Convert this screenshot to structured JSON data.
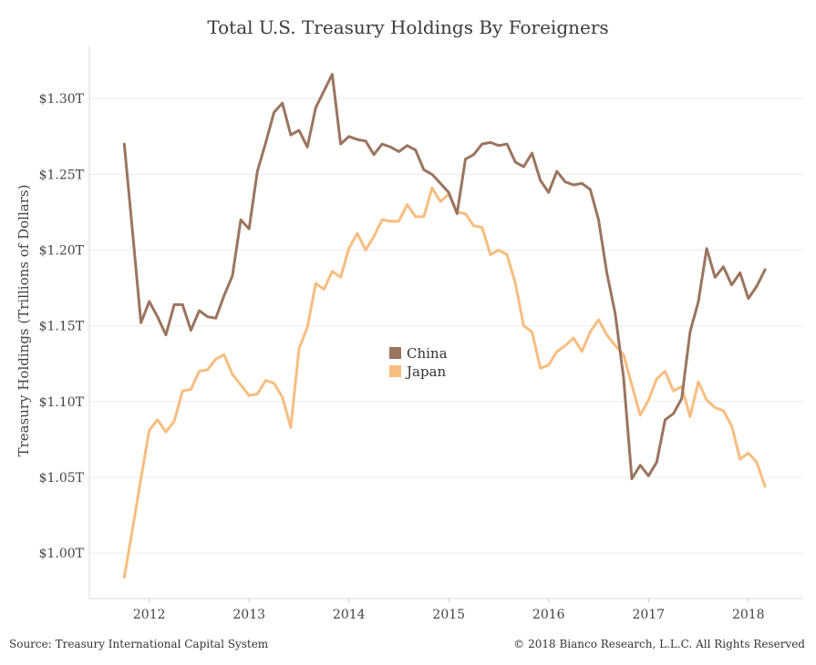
{
  "chart_data": {
    "type": "line",
    "title": "Total U.S. Treasury Holdings By Foreigners",
    "ylabel": "Treasury Holdings (Trillions of Dollars)",
    "xlabel": "",
    "xlim": [
      2011.4,
      2018.55
    ],
    "ylim": [
      0.97,
      1.335
    ],
    "y_ticks": [
      1.0,
      1.05,
      1.1,
      1.15,
      1.2,
      1.25,
      1.3
    ],
    "y_tick_labels": [
      "$1.00T",
      "$1.05T",
      "$1.10T",
      "$1.15T",
      "$1.20T",
      "$1.25T",
      "$1.30T"
    ],
    "x_ticks": [
      2012,
      2013,
      2014,
      2015,
      2016,
      2017,
      2018
    ],
    "x_tick_labels": [
      "2012",
      "2013",
      "2014",
      "2015",
      "2016",
      "2017",
      "2018"
    ],
    "grid": "horizontal",
    "legend_position": "center",
    "series": [
      {
        "name": "China",
        "color": "#9a7560",
        "x": [
          2011.75,
          2011.833,
          2011.917,
          2012.0,
          2012.083,
          2012.167,
          2012.25,
          2012.333,
          2012.417,
          2012.5,
          2012.583,
          2012.667,
          2012.75,
          2012.833,
          2012.917,
          2013.0,
          2013.083,
          2013.167,
          2013.25,
          2013.333,
          2013.417,
          2013.5,
          2013.583,
          2013.667,
          2013.75,
          2013.833,
          2013.917,
          2014.0,
          2014.083,
          2014.167,
          2014.25,
          2014.333,
          2014.417,
          2014.5,
          2014.583,
          2014.667,
          2014.75,
          2014.833,
          2014.917,
          2015.0,
          2015.083,
          2015.167,
          2015.25,
          2015.333,
          2015.417,
          2015.5,
          2015.583,
          2015.667,
          2015.75,
          2015.833,
          2015.917,
          2016.0,
          2016.083,
          2016.167,
          2016.25,
          2016.333,
          2016.417,
          2016.5,
          2016.583,
          2016.667,
          2016.75,
          2016.833,
          2016.917,
          2017.0,
          2017.083,
          2017.167,
          2017.25,
          2017.333,
          2017.417,
          2017.5,
          2017.583,
          2017.667,
          2017.75,
          2017.833,
          2017.917,
          2018.0,
          2018.083,
          2018.167
        ],
        "values": [
          1.27,
          1.212,
          1.152,
          1.166,
          1.156,
          1.144,
          1.164,
          1.164,
          1.147,
          1.16,
          1.156,
          1.155,
          1.17,
          1.183,
          1.22,
          1.214,
          1.252,
          1.271,
          1.291,
          1.297,
          1.276,
          1.279,
          1.268,
          1.294,
          1.305,
          1.316,
          1.27,
          1.275,
          1.273,
          1.272,
          1.263,
          1.27,
          1.268,
          1.265,
          1.269,
          1.266,
          1.253,
          1.25,
          1.244,
          1.238,
          1.224,
          1.26,
          1.263,
          1.27,
          1.271,
          1.269,
          1.27,
          1.258,
          1.255,
          1.264,
          1.246,
          1.238,
          1.252,
          1.245,
          1.243,
          1.244,
          1.24,
          1.22,
          1.185,
          1.158,
          1.116,
          1.049,
          1.058,
          1.051,
          1.06,
          1.088,
          1.092,
          1.102,
          1.146,
          1.166,
          1.201,
          1.182,
          1.189,
          1.177,
          1.185,
          1.168,
          1.176,
          1.187
        ]
      },
      {
        "name": "Japan",
        "color": "#f7bd80",
        "x": [
          2011.75,
          2011.833,
          2011.917,
          2012.0,
          2012.083,
          2012.167,
          2012.25,
          2012.333,
          2012.417,
          2012.5,
          2012.583,
          2012.667,
          2012.75,
          2012.833,
          2012.917,
          2013.0,
          2013.083,
          2013.167,
          2013.25,
          2013.333,
          2013.417,
          2013.5,
          2013.583,
          2013.667,
          2013.75,
          2013.833,
          2013.917,
          2014.0,
          2014.083,
          2014.167,
          2014.25,
          2014.333,
          2014.417,
          2014.5,
          2014.583,
          2014.667,
          2014.75,
          2014.833,
          2014.917,
          2015.0,
          2015.083,
          2015.167,
          2015.25,
          2015.333,
          2015.417,
          2015.5,
          2015.583,
          2015.667,
          2015.75,
          2015.833,
          2015.917,
          2016.0,
          2016.083,
          2016.167,
          2016.25,
          2016.333,
          2016.417,
          2016.5,
          2016.583,
          2016.667,
          2016.75,
          2016.833,
          2016.917,
          2017.0,
          2017.083,
          2017.167,
          2017.25,
          2017.333,
          2017.417,
          2017.5,
          2017.583,
          2017.667,
          2017.75,
          2017.833,
          2017.917,
          2018.0,
          2018.083,
          2018.167
        ],
        "values": [
          0.984,
          1.016,
          1.049,
          1.081,
          1.088,
          1.08,
          1.087,
          1.107,
          1.108,
          1.12,
          1.121,
          1.128,
          1.131,
          1.118,
          1.111,
          1.104,
          1.105,
          1.114,
          1.112,
          1.103,
          1.083,
          1.135,
          1.149,
          1.178,
          1.174,
          1.186,
          1.182,
          1.201,
          1.211,
          1.2,
          1.209,
          1.22,
          1.219,
          1.219,
          1.23,
          1.222,
          1.222,
          1.241,
          1.232,
          1.237,
          1.225,
          1.224,
          1.216,
          1.215,
          1.197,
          1.2,
          1.197,
          1.178,
          1.15,
          1.146,
          1.122,
          1.124,
          1.133,
          1.137,
          1.142,
          1.133,
          1.146,
          1.154,
          1.144,
          1.137,
          1.131,
          1.111,
          1.091,
          1.101,
          1.115,
          1.12,
          1.107,
          1.11,
          1.09,
          1.113,
          1.101,
          1.096,
          1.094,
          1.084,
          1.062,
          1.066,
          1.06,
          1.044
        ]
      }
    ]
  },
  "footer": {
    "source": "Source: Treasury International Capital System",
    "copyright": "© 2018 Bianco Research, L.L.C. All Rights Reserved"
  }
}
